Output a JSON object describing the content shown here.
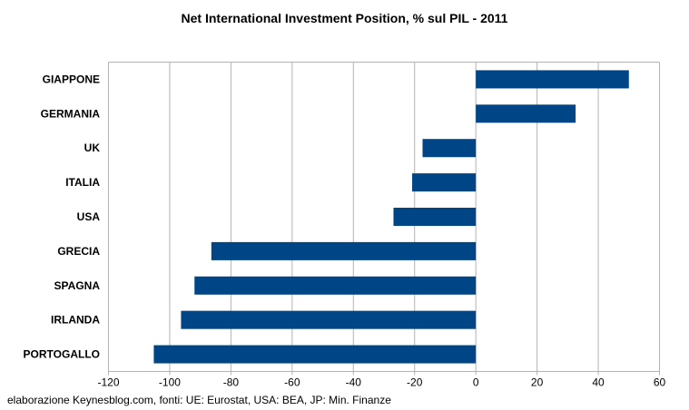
{
  "chart_data": {
    "type": "bar",
    "orientation": "horizontal",
    "title": "Net International Investment Position, % sul PIL - 2011",
    "categories": [
      "GIAPPONE",
      "GERMANIA",
      "UK",
      "ITALIA",
      "USA",
      "GRECIA",
      "SPAGNA",
      "IRLANDA",
      "PORTOGALLO"
    ],
    "values": [
      50,
      32.6,
      -17.4,
      -20.8,
      -26.9,
      -86.4,
      -91.9,
      -96.3,
      -105.2
    ],
    "xlim": [
      -120,
      60
    ],
    "xticks": [
      -120,
      -100,
      -80,
      -60,
      -40,
      -20,
      0,
      20,
      40,
      60
    ],
    "xlabel": "",
    "ylabel": "",
    "grid": "vertical",
    "bar_color": "#004586"
  },
  "footer": "elaborazione Keynesblog.com, fonti: UE: Eurostat, USA: BEA, JP: Min. Finanze"
}
